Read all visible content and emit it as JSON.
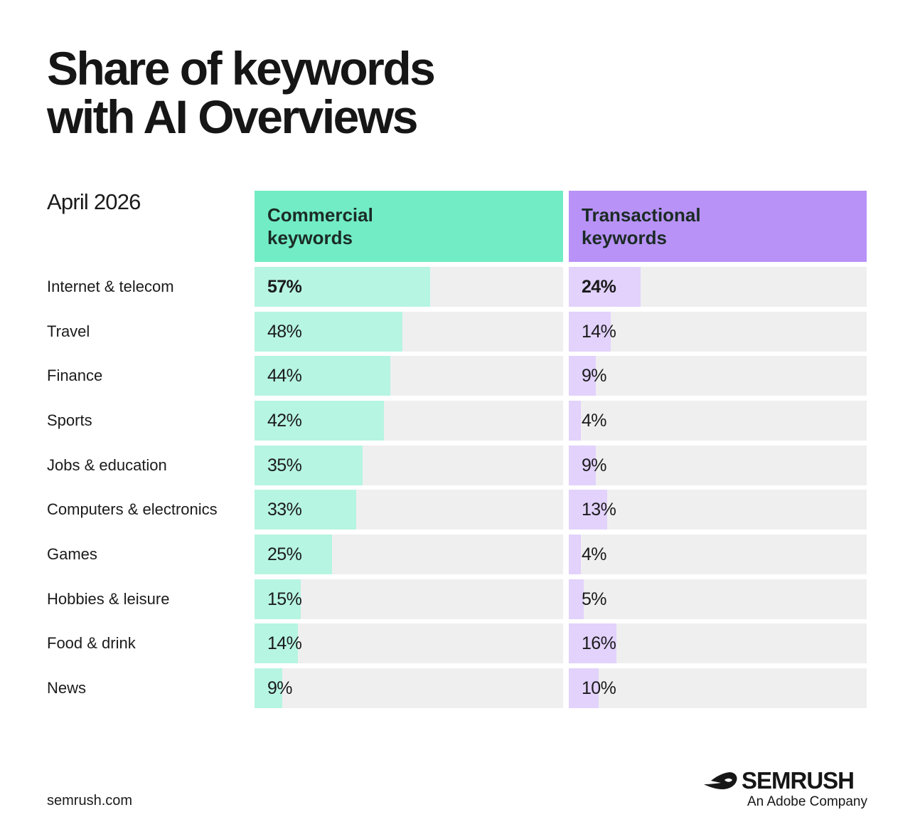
{
  "title_lines": [
    "Share of keywords",
    "with AI Overviews"
  ],
  "period": "April 2026",
  "columns": [
    {
      "lines": [
        "Commercial",
        "keywords"
      ],
      "color": "#72ecc4",
      "fill": "#b6f5e2"
    },
    {
      "lines": [
        "Transactional",
        "keywords"
      ],
      "color": "#b892f7",
      "fill": "#e2d2fc"
    }
  ],
  "track_color": "#efeff0",
  "chart_data": {
    "type": "bar",
    "title": "Share of keywords with AI Overviews",
    "categories": [
      "Internet & telecom",
      "Travel",
      "Finance",
      "Sports",
      "Jobs & education",
      "Computers & electronics",
      "Games",
      "Hobbies & leisure",
      "Food & drink",
      "News"
    ],
    "series": [
      {
        "name": "Commercial keywords",
        "values": [
          57,
          48,
          44,
          42,
          35,
          33,
          25,
          15,
          14,
          9
        ],
        "labels": [
          "57%",
          "48%",
          "44%",
          "42%",
          "35%",
          "33%",
          "25%",
          "15%",
          "14%",
          "9%"
        ]
      },
      {
        "name": "Transactional keywords",
        "values": [
          24,
          14,
          9,
          4,
          9,
          13,
          4,
          5,
          16,
          10
        ],
        "labels": [
          "24%",
          "14%",
          "9%",
          "4%",
          "9%",
          "13%",
          "4%",
          "5%",
          "16%",
          "10%"
        ]
      }
    ],
    "xlim": [
      0,
      100
    ],
    "grid": false,
    "legend": "top"
  },
  "footer": {
    "url": "semrush.com"
  },
  "brand": {
    "name": "SEMRUSH",
    "tagline": "An Adobe Company",
    "icon": "semrush-flame-icon"
  }
}
